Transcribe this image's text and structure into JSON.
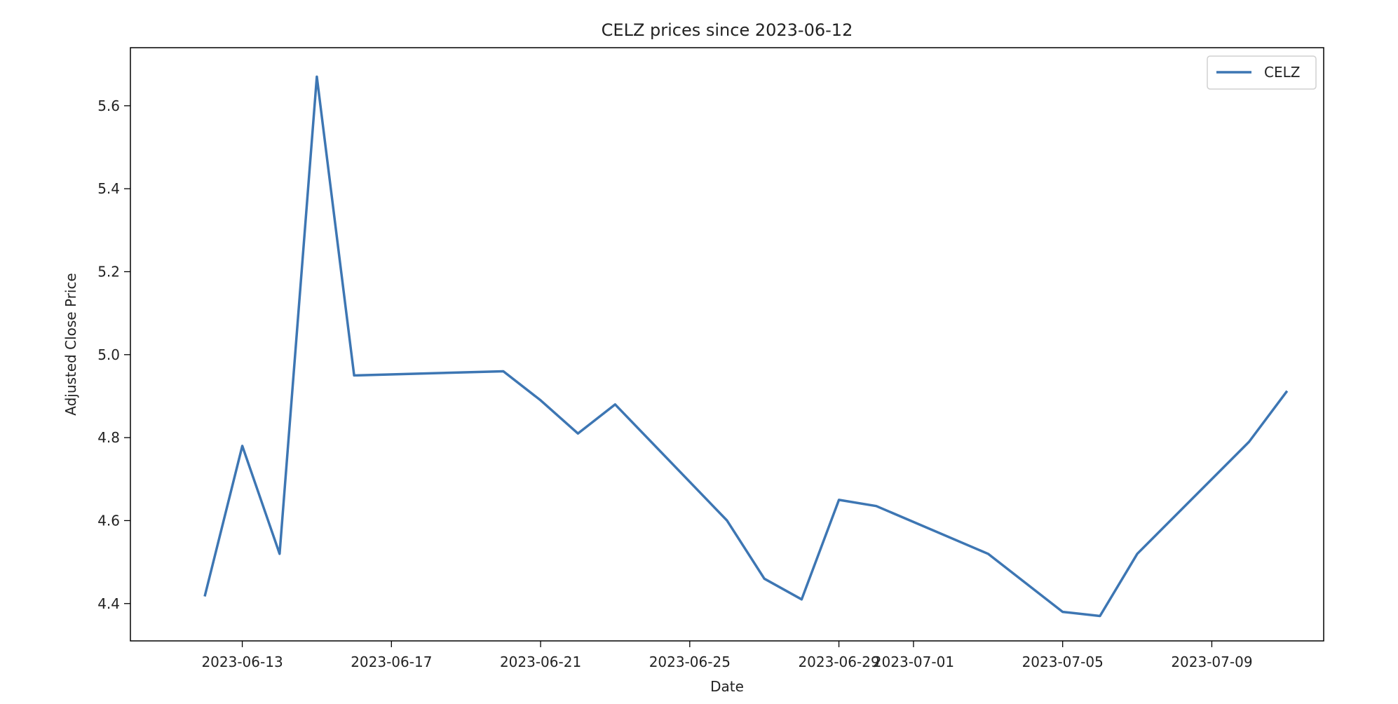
{
  "chart_data": {
    "type": "line",
    "title": "CELZ prices since 2023-06-12",
    "xlabel": "Date",
    "ylabel": "Adjusted Close Price",
    "xlim": [
      "2023-06-10",
      "2023-07-12"
    ],
    "ylim": [
      4.31,
      5.74
    ],
    "x_ticks": [
      "2023-06-13",
      "2023-06-17",
      "2023-06-21",
      "2023-06-25",
      "2023-06-29",
      "2023-07-01",
      "2023-07-05",
      "2023-07-09"
    ],
    "y_ticks": [
      "4.4",
      "4.6",
      "4.8",
      "5.0",
      "5.2",
      "5.4",
      "5.6"
    ],
    "grid": false,
    "legend": "top-right",
    "series": [
      {
        "name": "CELZ",
        "color": "#3d76b3",
        "points": [
          {
            "x": "2023-06-12",
            "y": 4.42
          },
          {
            "x": "2023-06-13",
            "y": 4.78
          },
          {
            "x": "2023-06-14",
            "y": 4.52
          },
          {
            "x": "2023-06-15",
            "y": 5.67
          },
          {
            "x": "2023-06-16",
            "y": 4.95
          },
          {
            "x": "2023-06-20",
            "y": 4.96
          },
          {
            "x": "2023-06-21",
            "y": 4.89
          },
          {
            "x": "2023-06-22",
            "y": 4.81
          },
          {
            "x": "2023-06-23",
            "y": 4.88
          },
          {
            "x": "2023-06-26",
            "y": 4.6
          },
          {
            "x": "2023-06-27",
            "y": 4.46
          },
          {
            "x": "2023-06-28",
            "y": 4.41
          },
          {
            "x": "2023-06-29",
            "y": 4.65
          },
          {
            "x": "2023-06-30",
            "y": 4.635
          },
          {
            "x": "2023-07-03",
            "y": 4.52
          },
          {
            "x": "2023-07-05",
            "y": 4.38
          },
          {
            "x": "2023-07-06",
            "y": 4.37
          },
          {
            "x": "2023-07-07",
            "y": 4.52
          },
          {
            "x": "2023-07-10",
            "y": 4.79
          },
          {
            "x": "2023-07-11",
            "y": 4.91
          }
        ]
      }
    ]
  }
}
